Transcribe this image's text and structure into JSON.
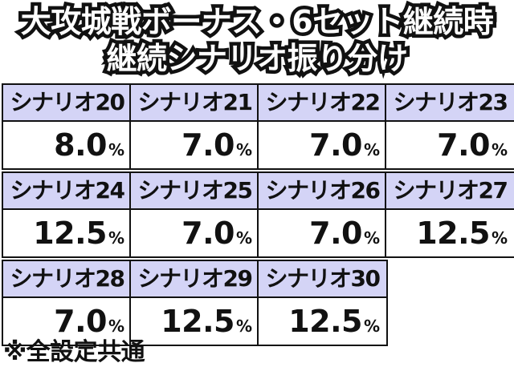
{
  "title": {
    "line1": "大攻城戦ボーナス・6セット継続時",
    "line2": "継続シナリオ振り分け"
  },
  "percent_sign": "%",
  "scenarios": [
    {
      "label": "シナリオ20",
      "value": "8.0"
    },
    {
      "label": "シナリオ21",
      "value": "7.0"
    },
    {
      "label": "シナリオ22",
      "value": "7.0"
    },
    {
      "label": "シナリオ23",
      "value": "7.0"
    },
    {
      "label": "シナリオ24",
      "value": "12.5"
    },
    {
      "label": "シナリオ25",
      "value": "7.0"
    },
    {
      "label": "シナリオ26",
      "value": "7.0"
    },
    {
      "label": "シナリオ27",
      "value": "12.5"
    },
    {
      "label": "シナリオ28",
      "value": "7.0"
    },
    {
      "label": "シナリオ29",
      "value": "12.5"
    },
    {
      "label": "シナリオ30",
      "value": "12.5"
    }
  ],
  "footnote": "※全設定共通",
  "colors": {
    "header_bg": "#d4d4f6",
    "border": "#111111",
    "title_fill": "#ffffff",
    "title_outline": "#111111"
  }
}
